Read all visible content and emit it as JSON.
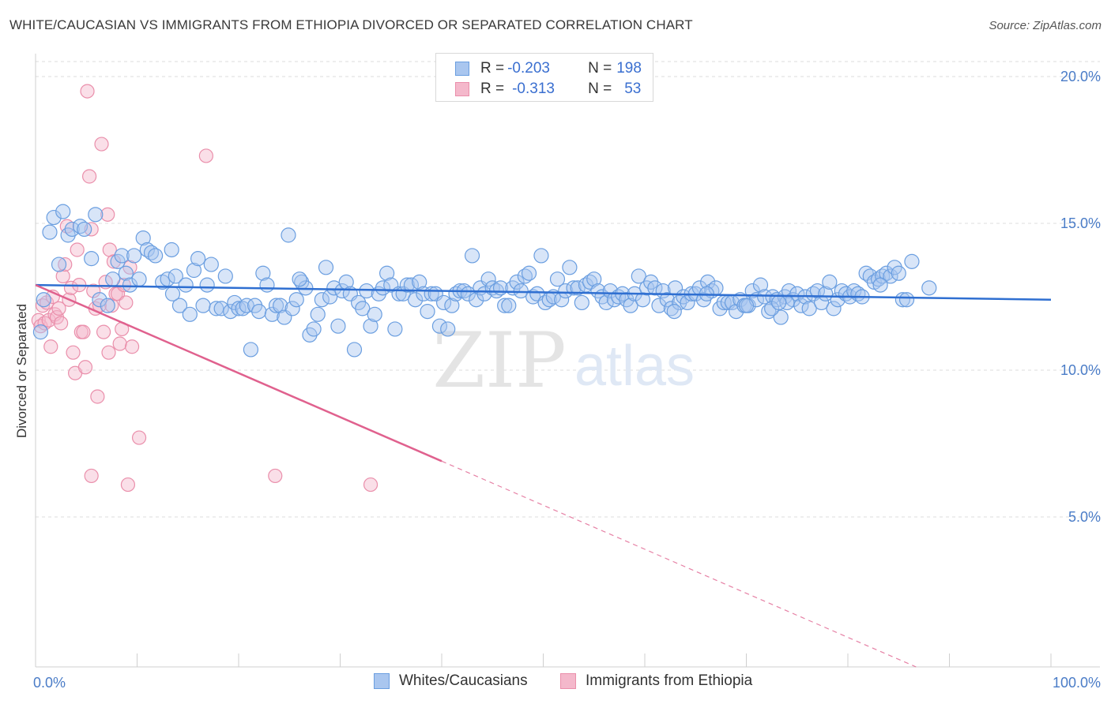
{
  "header": {
    "title": "WHITE/CAUCASIAN VS IMMIGRANTS FROM ETHIOPIA DIVORCED OR SEPARATED CORRELATION CHART",
    "source": "Source: ZipAtlas.com"
  },
  "legend": {
    "rows": [
      {
        "r_label": "R = ",
        "r_value": "-0.203",
        "n_label": "N = ",
        "n_value": "198"
      },
      {
        "r_label": "R = ",
        "r_value": "-0.313",
        "n_label": "N = ",
        "n_value": "53"
      }
    ]
  },
  "colors": {
    "blue_fill": "#a9c6ef",
    "blue_stroke": "#6a9ee0",
    "blue_line": "#2f6fd1",
    "pink_fill": "#f4b8cb",
    "pink_stroke": "#ea8fab",
    "pink_line": "#e0618e",
    "tick_text": "#4a7cc7",
    "grid": "#dddddd"
  },
  "watermark": {
    "zip": "ZIP",
    "atlas": "atlas"
  },
  "chart_data": {
    "type": "scatter",
    "title": "WHITE/CAUCASIAN VS IMMIGRANTS FROM ETHIOPIA DIVORCED OR SEPARATED CORRELATION CHART",
    "xlabel": "",
    "ylabel": "Divorced or Separated",
    "xlim": [
      0,
      100
    ],
    "ylim": [
      0,
      20.5
    ],
    "x_ticks": [
      0,
      10,
      20,
      30,
      40,
      50,
      60,
      70,
      80,
      90,
      100
    ],
    "x_tick_labels": [
      {
        "value": 0,
        "label": "0.0%"
      },
      {
        "value": 100,
        "label": "100.0%"
      }
    ],
    "y_ticks": [
      {
        "value": 5,
        "label": "5.0%"
      },
      {
        "value": 10,
        "label": "10.0%"
      },
      {
        "value": 15,
        "label": "15.0%"
      },
      {
        "value": 20,
        "label": "20.0%"
      }
    ],
    "grid": "horizontal dashed",
    "legend_position": "top-center",
    "series": [
      {
        "name": "Whites/Caucasians",
        "r": -0.203,
        "n": 198,
        "trend": {
          "x0": 0,
          "y0": 12.9,
          "x1": 100,
          "y1": 12.4
        },
        "points": [
          [
            0.5,
            11.3
          ],
          [
            0.8,
            12.4
          ],
          [
            1.4,
            14.7
          ],
          [
            1.8,
            15.2
          ],
          [
            2.3,
            13.6
          ],
          [
            2.7,
            15.4
          ],
          [
            3.2,
            14.6
          ],
          [
            3.6,
            14.8
          ],
          [
            4.4,
            14.9
          ],
          [
            4.8,
            14.8
          ],
          [
            5.5,
            13.8
          ],
          [
            5.9,
            15.3
          ],
          [
            6.3,
            12.4
          ],
          [
            7.1,
            12.2
          ],
          [
            7.6,
            13.1
          ],
          [
            8.1,
            13.7
          ],
          [
            8.5,
            13.9
          ],
          [
            8.9,
            13.3
          ],
          [
            9.3,
            12.9
          ],
          [
            9.7,
            13.9
          ],
          [
            10.2,
            13.1
          ],
          [
            10.6,
            14.5
          ],
          [
            11.0,
            14.1
          ],
          [
            11.4,
            14.0
          ],
          [
            11.8,
            13.9
          ],
          [
            12.5,
            13.0
          ],
          [
            13.0,
            13.1
          ],
          [
            13.4,
            14.1
          ],
          [
            13.8,
            13.2
          ],
          [
            14.2,
            12.2
          ],
          [
            14.8,
            12.9
          ],
          [
            15.2,
            11.9
          ],
          [
            15.6,
            13.4
          ],
          [
            16.0,
            13.8
          ],
          [
            16.5,
            12.2
          ],
          [
            16.9,
            12.9
          ],
          [
            17.3,
            13.6
          ],
          [
            17.8,
            12.1
          ],
          [
            18.3,
            12.1
          ],
          [
            18.7,
            13.2
          ],
          [
            19.2,
            12.0
          ],
          [
            19.6,
            12.3
          ],
          [
            20.0,
            12.1
          ],
          [
            20.4,
            12.1
          ],
          [
            20.8,
            12.2
          ],
          [
            21.2,
            10.7
          ],
          [
            21.6,
            12.2
          ],
          [
            22.0,
            12.0
          ],
          [
            22.4,
            13.3
          ],
          [
            22.8,
            12.9
          ],
          [
            23.3,
            11.9
          ],
          [
            23.7,
            12.2
          ],
          [
            24.1,
            12.2
          ],
          [
            24.5,
            11.8
          ],
          [
            24.9,
            14.6
          ],
          [
            25.3,
            12.1
          ],
          [
            25.7,
            12.4
          ],
          [
            26.2,
            13.0
          ],
          [
            26.6,
            12.8
          ],
          [
            27.0,
            11.2
          ],
          [
            27.4,
            11.4
          ],
          [
            27.8,
            11.9
          ],
          [
            28.2,
            12.4
          ],
          [
            28.6,
            13.5
          ],
          [
            29.0,
            12.5
          ],
          [
            29.4,
            12.8
          ],
          [
            29.8,
            11.5
          ],
          [
            30.2,
            12.7
          ],
          [
            30.6,
            13.0
          ],
          [
            31.0,
            12.6
          ],
          [
            31.4,
            10.7
          ],
          [
            31.8,
            12.3
          ],
          [
            32.2,
            12.1
          ],
          [
            32.6,
            12.7
          ],
          [
            33.0,
            11.5
          ],
          [
            33.4,
            11.9
          ],
          [
            33.8,
            12.6
          ],
          [
            34.2,
            12.8
          ],
          [
            34.6,
            13.3
          ],
          [
            35.0,
            12.9
          ],
          [
            35.4,
            11.4
          ],
          [
            35.8,
            12.6
          ],
          [
            36.2,
            12.6
          ],
          [
            36.6,
            12.9
          ],
          [
            37.0,
            12.9
          ],
          [
            37.4,
            12.4
          ],
          [
            37.8,
            13.0
          ],
          [
            38.2,
            12.6
          ],
          [
            38.6,
            12.0
          ],
          [
            39.0,
            12.6
          ],
          [
            39.4,
            12.6
          ],
          [
            39.8,
            11.5
          ],
          [
            40.2,
            12.3
          ],
          [
            40.6,
            11.4
          ],
          [
            41.0,
            12.2
          ],
          [
            41.4,
            12.6
          ],
          [
            41.8,
            12.7
          ],
          [
            42.2,
            12.7
          ],
          [
            42.6,
            12.6
          ],
          [
            43.0,
            13.9
          ],
          [
            43.4,
            12.4
          ],
          [
            43.8,
            12.8
          ],
          [
            44.2,
            12.6
          ],
          [
            44.6,
            13.1
          ],
          [
            45.0,
            12.8
          ],
          [
            45.4,
            12.7
          ],
          [
            45.8,
            12.8
          ],
          [
            46.2,
            12.2
          ],
          [
            46.6,
            12.2
          ],
          [
            47.0,
            12.8
          ],
          [
            47.4,
            13.0
          ],
          [
            47.8,
            12.7
          ],
          [
            48.2,
            13.2
          ],
          [
            48.6,
            13.3
          ],
          [
            49.0,
            12.5
          ],
          [
            49.4,
            12.6
          ],
          [
            49.8,
            13.9
          ],
          [
            50.2,
            12.3
          ],
          [
            50.6,
            12.4
          ],
          [
            51.0,
            12.5
          ],
          [
            51.4,
            13.1
          ],
          [
            51.8,
            12.4
          ],
          [
            52.2,
            12.7
          ],
          [
            52.6,
            13.5
          ],
          [
            53.0,
            12.8
          ],
          [
            53.4,
            12.8
          ],
          [
            53.8,
            12.3
          ],
          [
            54.2,
            12.9
          ],
          [
            54.6,
            13.0
          ],
          [
            55.0,
            13.1
          ],
          [
            55.4,
            12.7
          ],
          [
            55.8,
            12.5
          ],
          [
            56.2,
            12.3
          ],
          [
            56.6,
            12.7
          ],
          [
            57.0,
            12.4
          ],
          [
            57.4,
            12.5
          ],
          [
            57.8,
            12.6
          ],
          [
            58.2,
            12.4
          ],
          [
            58.6,
            12.2
          ],
          [
            59.0,
            12.6
          ],
          [
            59.4,
            13.2
          ],
          [
            59.8,
            12.4
          ],
          [
            60.2,
            12.8
          ],
          [
            60.6,
            13.0
          ],
          [
            61.0,
            12.8
          ],
          [
            61.4,
            12.2
          ],
          [
            61.8,
            12.7
          ],
          [
            62.2,
            12.4
          ],
          [
            62.6,
            12.1
          ],
          [
            63.0,
            12.8
          ],
          [
            63.4,
            12.3
          ],
          [
            63.8,
            12.5
          ],
          [
            64.2,
            12.3
          ],
          [
            64.6,
            12.6
          ],
          [
            65.0,
            12.6
          ],
          [
            65.4,
            12.8
          ],
          [
            65.8,
            12.4
          ],
          [
            66.2,
            13.0
          ],
          [
            66.6,
            12.7
          ],
          [
            67.0,
            12.8
          ],
          [
            67.4,
            12.1
          ],
          [
            67.8,
            12.3
          ],
          [
            68.2,
            12.3
          ],
          [
            68.6,
            12.3
          ],
          [
            69.0,
            12.0
          ],
          [
            69.4,
            12.4
          ],
          [
            69.8,
            12.2
          ],
          [
            70.2,
            12.2
          ],
          [
            70.6,
            12.7
          ],
          [
            71.0,
            12.4
          ],
          [
            71.4,
            12.9
          ],
          [
            71.8,
            12.5
          ],
          [
            72.2,
            12.0
          ],
          [
            72.6,
            12.5
          ],
          [
            73.0,
            12.4
          ],
          [
            73.4,
            11.8
          ],
          [
            73.8,
            12.5
          ],
          [
            74.2,
            12.7
          ],
          [
            74.6,
            12.4
          ],
          [
            75.0,
            12.6
          ],
          [
            75.4,
            12.2
          ],
          [
            75.8,
            12.5
          ],
          [
            76.2,
            12.1
          ],
          [
            76.6,
            12.6
          ],
          [
            77.0,
            12.7
          ],
          [
            77.4,
            12.3
          ],
          [
            77.8,
            12.6
          ],
          [
            78.2,
            13.0
          ],
          [
            78.6,
            12.1
          ],
          [
            79.0,
            12.4
          ],
          [
            79.4,
            12.7
          ],
          [
            79.8,
            12.6
          ],
          [
            80.2,
            12.5
          ],
          [
            80.6,
            12.7
          ],
          [
            81.0,
            12.6
          ],
          [
            81.4,
            12.5
          ],
          [
            81.8,
            13.3
          ],
          [
            82.2,
            13.2
          ],
          [
            82.6,
            13.0
          ],
          [
            83.0,
            13.1
          ],
          [
            83.4,
            13.2
          ],
          [
            83.8,
            13.3
          ],
          [
            84.2,
            13.2
          ],
          [
            84.6,
            13.5
          ],
          [
            85.0,
            13.3
          ],
          [
            85.4,
            12.4
          ],
          [
            85.8,
            12.4
          ],
          [
            86.3,
            13.7
          ],
          [
            70.0,
            12.2
          ],
          [
            74.0,
            12.3
          ],
          [
            72.5,
            12.1
          ],
          [
            73.2,
            12.3
          ],
          [
            13.5,
            12.6
          ],
          [
            26.0,
            13.1
          ],
          [
            88.0,
            12.8
          ],
          [
            83.2,
            12.9
          ],
          [
            62.9,
            12.0
          ],
          [
            66.1,
            12.6
          ]
        ]
      },
      {
        "name": "Immigrants from Ethiopia",
        "r": -0.313,
        "n": 53,
        "trend": {
          "x0": 0,
          "y0": 12.9,
          "x1": 40,
          "y1": 6.9
        },
        "trend_dashed": {
          "x0": 40,
          "y0": 6.9,
          "x1": 100,
          "y1": -2.1
        },
        "points": [
          [
            0.3,
            11.7
          ],
          [
            0.5,
            11.5
          ],
          [
            0.7,
            12.2
          ],
          [
            0.9,
            11.6
          ],
          [
            1.1,
            12.3
          ],
          [
            1.3,
            11.7
          ],
          [
            1.5,
            10.8
          ],
          [
            1.7,
            12.5
          ],
          [
            1.9,
            11.9
          ],
          [
            2.1,
            11.8
          ],
          [
            2.3,
            12.1
          ],
          [
            2.5,
            11.6
          ],
          [
            2.7,
            13.2
          ],
          [
            2.9,
            13.6
          ],
          [
            3.1,
            14.9
          ],
          [
            3.3,
            12.4
          ],
          [
            3.5,
            12.8
          ],
          [
            3.7,
            10.6
          ],
          [
            3.9,
            9.9
          ],
          [
            4.1,
            14.1
          ],
          [
            4.3,
            12.9
          ],
          [
            4.5,
            11.3
          ],
          [
            4.7,
            11.3
          ],
          [
            4.9,
            10.1
          ],
          [
            5.1,
            19.5
          ],
          [
            5.3,
            16.6
          ],
          [
            5.5,
            14.8
          ],
          [
            5.7,
            12.7
          ],
          [
            5.9,
            12.1
          ],
          [
            6.1,
            9.1
          ],
          [
            6.3,
            12.2
          ],
          [
            6.5,
            17.7
          ],
          [
            6.7,
            11.3
          ],
          [
            6.9,
            13.0
          ],
          [
            7.1,
            15.3
          ],
          [
            7.3,
            14.1
          ],
          [
            7.5,
            12.2
          ],
          [
            7.7,
            13.7
          ],
          [
            7.9,
            12.6
          ],
          [
            8.1,
            12.6
          ],
          [
            8.3,
            10.9
          ],
          [
            8.5,
            11.4
          ],
          [
            8.7,
            12.9
          ],
          [
            8.9,
            12.3
          ],
          [
            9.1,
            6.1
          ],
          [
            9.3,
            13.5
          ],
          [
            9.5,
            10.8
          ],
          [
            10.2,
            7.7
          ],
          [
            5.5,
            6.4
          ],
          [
            16.8,
            17.3
          ],
          [
            23.6,
            6.4
          ],
          [
            33.0,
            6.1
          ],
          [
            7.2,
            10.6
          ]
        ]
      }
    ]
  },
  "bottom_legend": {
    "items": [
      {
        "label": "Whites/Caucasians"
      },
      {
        "label": "Immigrants from Ethiopia"
      }
    ]
  }
}
